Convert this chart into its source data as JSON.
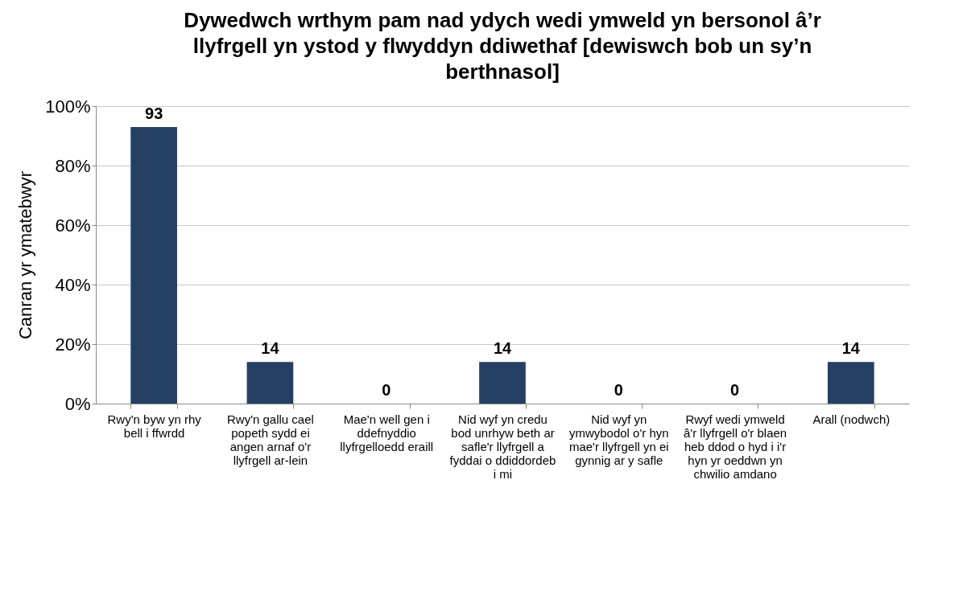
{
  "chart_data": {
    "type": "bar",
    "title": "Dywedwch wrthym pam nad ydych wedi ymweld yn bersonol â’r llyfrgell yn ystod y flwyddyn ddiwethaf [dewiswch bob un sy’n berthnasol]",
    "ylabel": "Canran yr ymatebwyr",
    "categories": [
      "Rwy'n byw yn rhy bell i ffwrdd",
      "Rwy'n gallu cael popeth sydd ei angen arnaf o'r llyfrgell ar-lein",
      "Mae'n well gen i ddefnyddio llyfrgelloedd eraill",
      "Nid wyf yn credu bod unrhyw beth ar safle'r llyfrgell a fyddai o ddiddordeb i mi",
      "Nid wyf yn ymwybodol o'r hyn mae'r llyfrgell yn ei gynnig ar y safle",
      "Rwyf wedi ymweld â'r llyfrgell o'r blaen heb ddod o hyd i i'r hyn yr oeddwn yn chwilio amdano",
      "Arall (nodwch)"
    ],
    "values": [
      93,
      14,
      0,
      14,
      0,
      0,
      14
    ],
    "color": "#264064",
    "ylim": [
      0,
      100
    ],
    "yticks": [
      {
        "value": 0,
        "label": "0%"
      },
      {
        "value": 20,
        "label": "20%"
      },
      {
        "value": 40,
        "label": "40%"
      },
      {
        "value": 60,
        "label": "60%"
      },
      {
        "value": 80,
        "label": "80%"
      },
      {
        "value": 100,
        "label": "100%"
      }
    ],
    "grid": "y",
    "data_labels": true
  }
}
